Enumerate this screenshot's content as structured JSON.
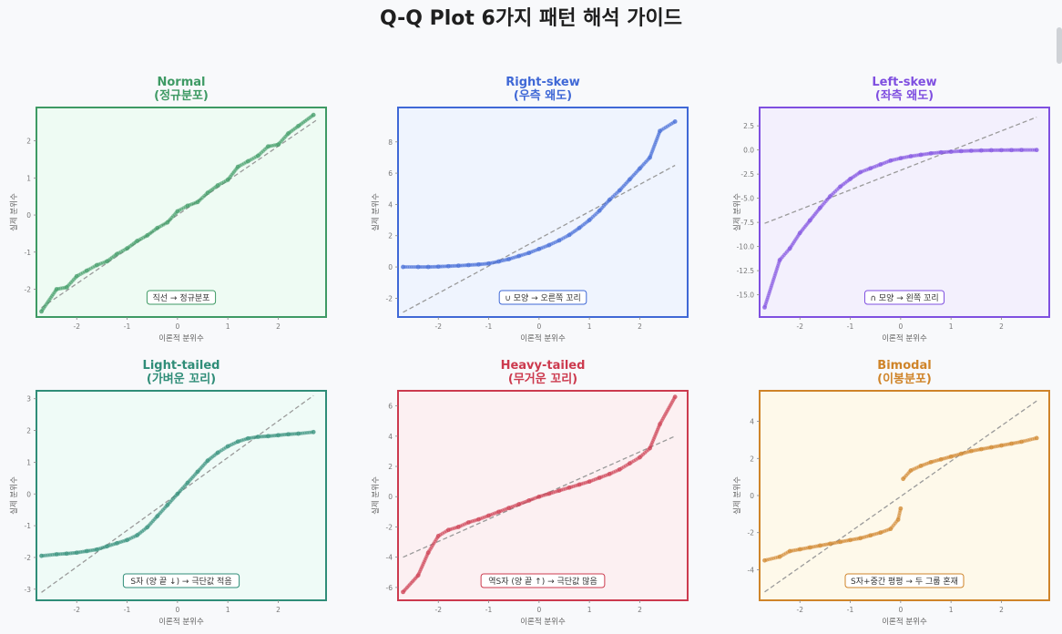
{
  "title": "Q-Q Plot 6가지 패턴 해석 가이드",
  "chart_data": [
    {
      "type": "scatter",
      "pattern": "normal",
      "title_en": "Normal",
      "title_ko": "(정규분포)",
      "xlabel": "이론적 분위수",
      "ylabel": "실제 분위수",
      "annotation": "직선 → 정규분포",
      "color": "#3e9a64",
      "bg": "#eefbf3",
      "xlim": [
        -2.8,
        2.95
      ],
      "ylim": [
        -2.75,
        2.9
      ],
      "xticks": [
        -2,
        -1,
        0,
        1,
        2
      ],
      "yticks": [
        -2,
        -1,
        0,
        1,
        2
      ],
      "ref_line": [
        [
          -2.7,
          -2.5
        ],
        [
          2.75,
          2.55
        ]
      ],
      "x": [
        -2.7,
        -2.4,
        -2.2,
        -2.0,
        -1.8,
        -1.6,
        -1.4,
        -1.2,
        -1.0,
        -0.8,
        -0.6,
        -0.4,
        -0.2,
        0.0,
        0.2,
        0.4,
        0.6,
        0.8,
        1.0,
        1.2,
        1.4,
        1.6,
        1.8,
        2.0,
        2.2,
        2.4,
        2.7
      ],
      "y": [
        -2.6,
        -2.0,
        -1.95,
        -1.65,
        -1.5,
        -1.35,
        -1.25,
        -1.05,
        -0.9,
        -0.7,
        -0.55,
        -0.35,
        -0.2,
        0.1,
        0.25,
        0.35,
        0.6,
        0.8,
        0.95,
        1.3,
        1.45,
        1.6,
        1.85,
        1.9,
        2.2,
        2.4,
        2.7
      ]
    },
    {
      "type": "scatter",
      "pattern": "right-skew",
      "title_en": "Right-skew",
      "title_ko": "(우측 왜도)",
      "xlabel": "이론적 분위수",
      "ylabel": "실제 분위수",
      "annotation": "∪ 모양 → 오른쪽 꼬리",
      "color": "#3f68d6",
      "bg": "#eff4fe",
      "xlim": [
        -2.8,
        2.95
      ],
      "ylim": [
        -3.2,
        10.2
      ],
      "xticks": [
        -2,
        -1,
        0,
        1,
        2
      ],
      "yticks": [
        -2,
        0,
        2,
        4,
        6,
        8
      ],
      "ref_line": [
        [
          -2.7,
          -2.9
        ],
        [
          2.7,
          6.5
        ]
      ],
      "x": [
        -2.7,
        -2.4,
        -2.2,
        -2.0,
        -1.8,
        -1.6,
        -1.4,
        -1.2,
        -1.0,
        -0.8,
        -0.6,
        -0.4,
        -0.2,
        0.0,
        0.2,
        0.4,
        0.6,
        0.8,
        1.0,
        1.2,
        1.4,
        1.6,
        1.8,
        2.0,
        2.2,
        2.4,
        2.7
      ],
      "y": [
        0.0,
        0.0,
        0.0,
        0.02,
        0.05,
        0.08,
        0.12,
        0.16,
        0.22,
        0.35,
        0.5,
        0.7,
        0.9,
        1.15,
        1.4,
        1.7,
        2.05,
        2.5,
        3.0,
        3.6,
        4.3,
        4.9,
        5.6,
        6.3,
        7.0,
        8.7,
        9.3
      ]
    },
    {
      "type": "scatter",
      "pattern": "left-skew",
      "title_en": "Left-skew",
      "title_ko": "(좌측 왜도)",
      "xlabel": "이론적 분위수",
      "ylabel": "실제 분위수",
      "annotation": "∩ 모양 → 왼쪽 꼬리",
      "color": "#7f4fe0",
      "bg": "#f3f0fd",
      "xlim": [
        -2.8,
        2.95
      ],
      "ylim": [
        -17.3,
        4.4
      ],
      "xticks": [
        -2,
        -1,
        0,
        1,
        2
      ],
      "yticks": [
        -15.0,
        -12.5,
        -10.0,
        -7.5,
        -5.0,
        -2.5,
        0.0,
        2.5
      ],
      "ref_line": [
        [
          -2.7,
          -7.6
        ],
        [
          2.7,
          3.4
        ]
      ],
      "x": [
        -2.7,
        -2.4,
        -2.2,
        -2.0,
        -1.8,
        -1.6,
        -1.4,
        -1.2,
        -1.0,
        -0.8,
        -0.6,
        -0.4,
        -0.2,
        0.0,
        0.2,
        0.4,
        0.6,
        0.8,
        1.0,
        1.2,
        1.4,
        1.6,
        1.8,
        2.0,
        2.2,
        2.4,
        2.7
      ],
      "y": [
        -16.3,
        -11.4,
        -10.2,
        -8.6,
        -7.3,
        -6.0,
        -4.8,
        -3.8,
        -3.0,
        -2.3,
        -1.9,
        -1.5,
        -1.1,
        -0.85,
        -0.65,
        -0.5,
        -0.35,
        -0.25,
        -0.18,
        -0.12,
        -0.08,
        -0.05,
        -0.03,
        -0.02,
        -0.01,
        0.0,
        0.0
      ]
    },
    {
      "type": "scatter",
      "pattern": "light-tailed",
      "title_en": "Light-tailed",
      "title_ko": "(가벼운 꼬리)",
      "xlabel": "이론적 분위수",
      "ylabel": "실제 분위수",
      "annotation": "S자 (양 끝 ↓) → 극단값 적음",
      "color": "#2f8d78",
      "bg": "#effbf7",
      "xlim": [
        -2.8,
        2.95
      ],
      "ylim": [
        -3.35,
        3.25
      ],
      "xticks": [
        -2,
        -1,
        0,
        1,
        2
      ],
      "yticks": [
        -3,
        -2,
        -1,
        0,
        1,
        2,
        3
      ],
      "ref_line": [
        [
          -2.7,
          -3.1
        ],
        [
          2.7,
          3.1
        ]
      ],
      "x": [
        -2.7,
        -2.4,
        -2.2,
        -2.0,
        -1.8,
        -1.6,
        -1.4,
        -1.2,
        -1.0,
        -0.8,
        -0.6,
        -0.4,
        -0.2,
        0.0,
        0.2,
        0.4,
        0.6,
        0.8,
        1.0,
        1.2,
        1.4,
        1.6,
        1.8,
        2.0,
        2.2,
        2.4,
        2.7
      ],
      "y": [
        -1.95,
        -1.9,
        -1.88,
        -1.85,
        -1.8,
        -1.75,
        -1.65,
        -1.55,
        -1.45,
        -1.3,
        -1.05,
        -0.7,
        -0.35,
        0.0,
        0.35,
        0.7,
        1.05,
        1.3,
        1.5,
        1.65,
        1.75,
        1.8,
        1.82,
        1.85,
        1.88,
        1.9,
        1.95
      ]
    },
    {
      "type": "scatter",
      "pattern": "heavy-tailed",
      "title_en": "Heavy-tailed",
      "title_ko": "(무거운 꼬리)",
      "xlabel": "이론적 분위수",
      "ylabel": "실제 분위수",
      "annotation": "역S자 (양 끝 ↑) → 극단값 많음",
      "color": "#cc3a4e",
      "bg": "#fcf0f2",
      "xlim": [
        -2.8,
        2.95
      ],
      "ylim": [
        -6.85,
        7.0
      ],
      "xticks": [
        -2,
        -1,
        0,
        1,
        2
      ],
      "yticks": [
        -6,
        -4,
        -2,
        0,
        2,
        4,
        6
      ],
      "ref_line": [
        [
          -2.7,
          -4.0
        ],
        [
          2.7,
          4.0
        ]
      ],
      "x": [
        -2.7,
        -2.4,
        -2.2,
        -2.0,
        -1.8,
        -1.6,
        -1.4,
        -1.2,
        -1.0,
        -0.8,
        -0.6,
        -0.4,
        -0.2,
        0.0,
        0.2,
        0.4,
        0.6,
        0.8,
        1.0,
        1.2,
        1.4,
        1.6,
        1.8,
        2.0,
        2.2,
        2.4,
        2.7
      ],
      "y": [
        -6.3,
        -5.2,
        -3.7,
        -2.6,
        -2.2,
        -2.0,
        -1.7,
        -1.5,
        -1.25,
        -1.0,
        -0.75,
        -0.5,
        -0.25,
        0.0,
        0.2,
        0.4,
        0.6,
        0.8,
        1.0,
        1.25,
        1.5,
        1.8,
        2.2,
        2.6,
        3.2,
        4.8,
        6.6
      ]
    },
    {
      "type": "scatter",
      "pattern": "bimodal",
      "title_en": "Bimodal",
      "title_ko": "(이봉분포)",
      "xlabel": "이론적 분위수",
      "ylabel": "실제 분위수",
      "annotation": "S자+중간 평평 → 두 그룹 혼재",
      "color": "#cf8429",
      "bg": "#fef9ea",
      "xlim": [
        -2.8,
        2.95
      ],
      "ylim": [
        -5.65,
        5.65
      ],
      "xticks": [
        -2,
        -1,
        0,
        1,
        2
      ],
      "yticks": [
        -4,
        -2,
        0,
        2,
        4
      ],
      "ref_line": [
        [
          -2.7,
          -5.2
        ],
        [
          2.7,
          5.1
        ]
      ],
      "x": [
        -2.7,
        -2.4,
        -2.2,
        -2.0,
        -1.8,
        -1.6,
        -1.4,
        -1.2,
        -1.0,
        -0.8,
        -0.6,
        -0.4,
        -0.2,
        -0.05,
        0.0,
        0.05,
        0.2,
        0.4,
        0.6,
        0.8,
        1.0,
        1.2,
        1.4,
        1.6,
        1.8,
        2.0,
        2.2,
        2.4,
        2.7
      ],
      "y": [
        -3.5,
        -3.3,
        -3.0,
        -2.9,
        -2.8,
        -2.7,
        -2.6,
        -2.5,
        -2.4,
        -2.3,
        -2.15,
        -2.0,
        -1.8,
        -1.3,
        -0.7,
        0.9,
        1.35,
        1.6,
        1.8,
        1.95,
        2.1,
        2.25,
        2.4,
        2.5,
        2.6,
        2.7,
        2.8,
        2.9,
        3.1
      ]
    }
  ]
}
